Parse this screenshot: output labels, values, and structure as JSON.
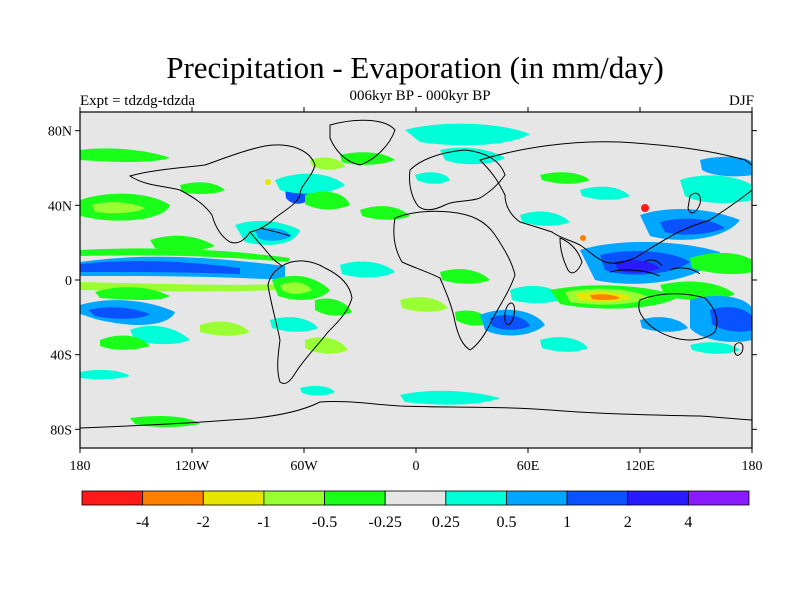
{
  "title": "Precipitation - Evaporation (in mm/day)",
  "subtitle": "006kyr BP - 000kyr BP",
  "left_label": "Expt = tdzdg-tdzda",
  "right_label": "DJF",
  "lat_ticks": [
    "80N",
    "40N",
    "0",
    "40S",
    "80S"
  ],
  "lon_ticks": [
    "180",
    "120W",
    "60W",
    "0",
    "60E",
    "120E",
    "180"
  ],
  "colorbar": {
    "colors": [
      "#ff1a1a",
      "#ff8000",
      "#e6e600",
      "#99ff33",
      "#1aff1a",
      "#e6e6e6",
      "#00ffd9",
      "#00a6ff",
      "#0a52ff",
      "#2a1aff",
      "#8a1aff"
    ],
    "labels": [
      "-4",
      "-2",
      "-1",
      "-0.5",
      "-0.25",
      "0.25",
      "0.5",
      "1",
      "2",
      "4"
    ]
  },
  "chart_data": {
    "type": "heatmap",
    "title": "Precipitation - Evaporation (in mm/day)",
    "subtitle": "006kyr BP - 000kyr BP",
    "season": "DJF",
    "experiment": "Expt = tdzdg-tdzda",
    "x_range": [
      -180,
      180
    ],
    "y_range": [
      -90,
      90
    ],
    "levels": [
      -4,
      -2,
      -1,
      -0.5,
      -0.25,
      0.25,
      0.5,
      1,
      2,
      4
    ]
  }
}
